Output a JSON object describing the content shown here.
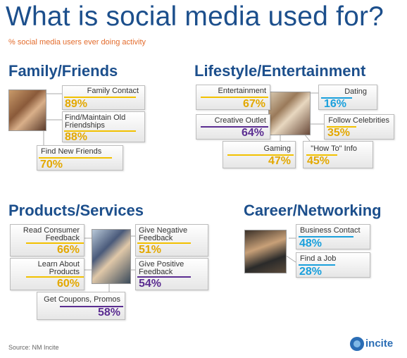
{
  "title": "What is social media used for?",
  "subtitle": "% social media users ever doing activity",
  "source": "Source: NM Incite",
  "logo": {
    "text": "incite"
  },
  "colors": {
    "title": "#1c4f8c",
    "subtitle": "#e36c2d",
    "yellow": "#f2c100",
    "yellow_text": "#e3a800",
    "purple": "#5b2d91",
    "blue": "#1aa0dc"
  },
  "chart_data": {
    "type": "table",
    "title": "What is social media used for?",
    "subtitle": "% social media users ever doing activity",
    "groups": [
      {
        "name": "Family/Friends",
        "items": [
          {
            "label": "Family Contact",
            "value": 89,
            "text": "89%",
            "color": "yellow"
          },
          {
            "label": "Find/Maintain Old Friendships",
            "value": 88,
            "text": "88%",
            "color": "yellow"
          },
          {
            "label": "Find New Friends",
            "value": 70,
            "text": "70%",
            "color": "yellow"
          }
        ]
      },
      {
        "name": "Lifestyle/Entertainment",
        "items": [
          {
            "label": "Entertainment",
            "value": 67,
            "text": "67%",
            "color": "yellow"
          },
          {
            "label": "Dating",
            "value": 16,
            "text": "16%",
            "color": "blue"
          },
          {
            "label": "Creative Outlet",
            "value": 64,
            "text": "64%",
            "color": "purple"
          },
          {
            "label": "Follow Celebrities",
            "value": 35,
            "text": "35%",
            "color": "yellow"
          },
          {
            "label": "Gaming",
            "value": 47,
            "text": "47%",
            "color": "yellow"
          },
          {
            "label": "\"How To\" Info",
            "value": 45,
            "text": "45%",
            "color": "yellow"
          }
        ]
      },
      {
        "name": "Products/Services",
        "items": [
          {
            "label": "Read Consumer Feedback",
            "value": 66,
            "text": "66%",
            "color": "yellow"
          },
          {
            "label": "Give Negative Feedback",
            "value": 51,
            "text": "51%",
            "color": "yellow"
          },
          {
            "label": "Learn About Products",
            "value": 60,
            "text": "60%",
            "color": "yellow"
          },
          {
            "label": "Give Positive Feedback",
            "value": 54,
            "text": "54%",
            "color": "purple"
          },
          {
            "label": "Get Coupons, Promos",
            "value": 58,
            "text": "58%",
            "color": "purple"
          }
        ]
      },
      {
        "name": "Career/Networking",
        "items": [
          {
            "label": "Business Contact",
            "value": 48,
            "text": "48%",
            "color": "blue"
          },
          {
            "label": "Find a Job",
            "value": 28,
            "text": "28%",
            "color": "blue"
          }
        ]
      }
    ]
  }
}
